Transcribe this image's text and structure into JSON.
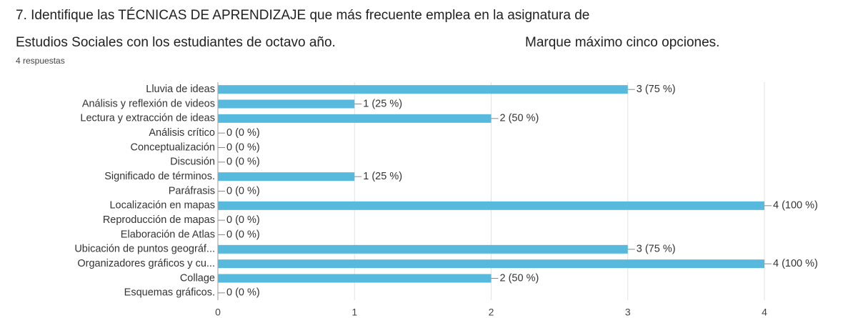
{
  "chart_data": {
    "type": "bar",
    "orientation": "horizontal",
    "title": [
      "7.  Identifique las TÉCNICAS DE APRENDIZAJE que más frecuente emplea en la asignatura de",
      "Estudios Sociales con los estudiantes de octavo año."
    ],
    "note": "Marque máximo cinco opciones.",
    "subtitle": "4 respuestas",
    "categories": [
      "Lluvia de ideas",
      "Análisis y reflexión de videos",
      "Lectura y extracción de ideas",
      "Análisis crítico",
      "Conceptualización",
      "Discusión",
      "Significado de términos.",
      "Paráfrasis",
      "Localización en mapas",
      "Reproducción de mapas",
      "Elaboración de Atlas",
      "Ubicación de puntos geográf...",
      "Organizadores gráficos y cu...",
      "Collage",
      "Esquemas gráficos."
    ],
    "values": [
      3,
      1,
      2,
      0,
      0,
      0,
      1,
      0,
      4,
      0,
      0,
      3,
      4,
      2,
      0
    ],
    "value_labels": [
      "3 (75 %)",
      "1 (25 %)",
      "2 (50 %)",
      "0 (0 %)",
      "0 (0 %)",
      "0 (0 %)",
      "1 (25 %)",
      "0 (0 %)",
      "4 (100 %)",
      "0 (0 %)",
      "0 (0 %)",
      "3 (75 %)",
      "4 (100 %)",
      "2 (50 %)",
      "0 (0 %)"
    ],
    "color": "#57b9dc",
    "xlim": [
      0,
      4
    ],
    "xticks": [
      0,
      1,
      2,
      3,
      4
    ],
    "grid": true
  }
}
